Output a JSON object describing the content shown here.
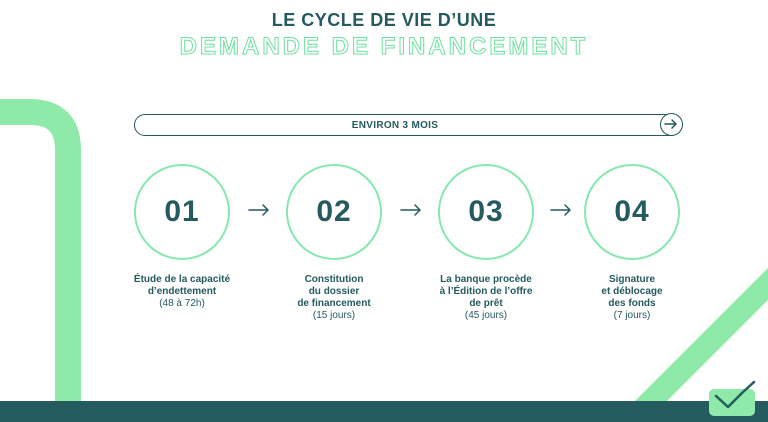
{
  "title": {
    "line1": "LE CYCLE DE VIE D’UNE",
    "line2": "DEMANDE DE FINANCEMENT"
  },
  "duration": {
    "label": "ENVIRON 3 MOIS",
    "icon": "arrow-right-circle-icon"
  },
  "steps": [
    {
      "number": "01",
      "title": "Étude de la capacité\nd’endettement",
      "duration": "(48 à 72h)"
    },
    {
      "number": "02",
      "title": "Constitution\ndu dossier\nde financement",
      "duration": "(15 jours)"
    },
    {
      "number": "03",
      "title": "La banque procède\nà l’Édition de l’offre\nde prêt",
      "duration": "(45 jours)"
    },
    {
      "number": "04",
      "title": "Signature\net déblocage\ndes fonds",
      "duration": "(7 jours)"
    }
  ],
  "colors": {
    "primary": "#255a5f",
    "accent": "#86e8b0"
  },
  "icons": {
    "step_arrow": "arrow-right-icon",
    "logo": "brand-logo-icon"
  }
}
